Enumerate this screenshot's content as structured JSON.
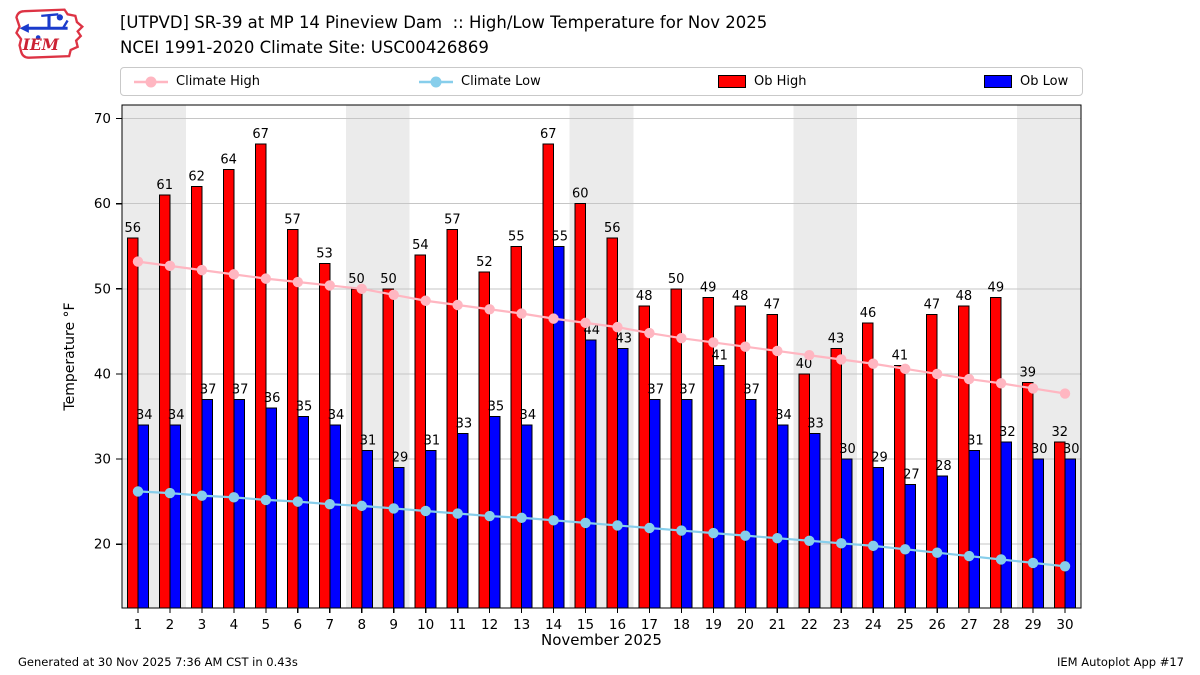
{
  "header": {
    "title_line1": "[UTPVD] SR-39 at MP 14 Pineview Dam  :: High/Low Temperature for Nov 2025",
    "title_line2": "NCEI 1991-2020 Climate Site: USC00426869",
    "logo_text": "IEM"
  },
  "legend": {
    "items": [
      {
        "label": "Climate High",
        "type": "line",
        "color": "#ffb6c1"
      },
      {
        "label": "Climate Low",
        "type": "line",
        "color": "#87ceeb"
      },
      {
        "label": "Ob High",
        "type": "swatch",
        "color": "#ff0000"
      },
      {
        "label": "Ob Low",
        "type": "swatch",
        "color": "#0000ff"
      }
    ]
  },
  "chart_data": {
    "type": "bar",
    "x": [
      1,
      2,
      3,
      4,
      5,
      6,
      7,
      8,
      9,
      10,
      11,
      12,
      13,
      14,
      15,
      16,
      17,
      18,
      19,
      20,
      21,
      22,
      23,
      24,
      25,
      26,
      27,
      28,
      29,
      30
    ],
    "series": [
      {
        "name": "Ob High",
        "type": "bar",
        "color": "#ff0000",
        "values": [
          56,
          61,
          62,
          64,
          67,
          57,
          53,
          50,
          50,
          54,
          57,
          52,
          55,
          67,
          60,
          56,
          48,
          50,
          49,
          48,
          47,
          40,
          43,
          46,
          41,
          47,
          48,
          49,
          39,
          32
        ]
      },
      {
        "name": "Ob Low",
        "type": "bar",
        "color": "#0000ff",
        "values": [
          34,
          34,
          37,
          37,
          36,
          35,
          34,
          31,
          29,
          31,
          33,
          35,
          34,
          55,
          44,
          43,
          37,
          37,
          41,
          37,
          34,
          33,
          30,
          29,
          27,
          28,
          31,
          32,
          30,
          30
        ]
      },
      {
        "name": "Climate High",
        "type": "line",
        "color": "#ffb6c1",
        "values": [
          53.2,
          52.7,
          52.2,
          51.7,
          51.2,
          50.8,
          50.4,
          50.0,
          49.3,
          48.6,
          48.1,
          47.6,
          47.1,
          46.5,
          46.0,
          45.5,
          44.8,
          44.2,
          43.7,
          43.2,
          42.7,
          42.2,
          41.7,
          41.2,
          40.6,
          40.0,
          39.4,
          38.9,
          38.3,
          37.7
        ]
      },
      {
        "name": "Climate Low",
        "type": "line",
        "color": "#87ceeb",
        "values": [
          26.2,
          26.0,
          25.7,
          25.5,
          25.2,
          25.0,
          24.7,
          24.5,
          24.2,
          23.9,
          23.6,
          23.3,
          23.1,
          22.8,
          22.5,
          22.2,
          21.9,
          21.6,
          21.3,
          21.0,
          20.7,
          20.4,
          20.1,
          19.8,
          19.4,
          19.0,
          18.6,
          18.2,
          17.8,
          17.4
        ]
      }
    ],
    "title": "[UTPVD] SR-39 at MP 14 Pineview Dam :: High/Low Temperature for Nov 2025",
    "xlabel": "November 2025",
    "ylabel": "Temperature °F",
    "yticks": [
      20,
      30,
      40,
      50,
      60,
      70
    ],
    "ylim": [
      12.5,
      71.6
    ],
    "weekend_bands": [
      [
        1,
        2
      ],
      [
        8,
        9
      ],
      [
        15,
        16
      ],
      [
        22,
        23
      ],
      [
        29,
        30
      ]
    ],
    "grid": true,
    "band_color": "#ebebeb",
    "grid_color": "#c6c6c6",
    "legend_position": "top"
  },
  "footer": {
    "left": "Generated at 30 Nov 2025 7:36 AM CST in 0.43s",
    "right": "IEM Autoplot App #17"
  }
}
